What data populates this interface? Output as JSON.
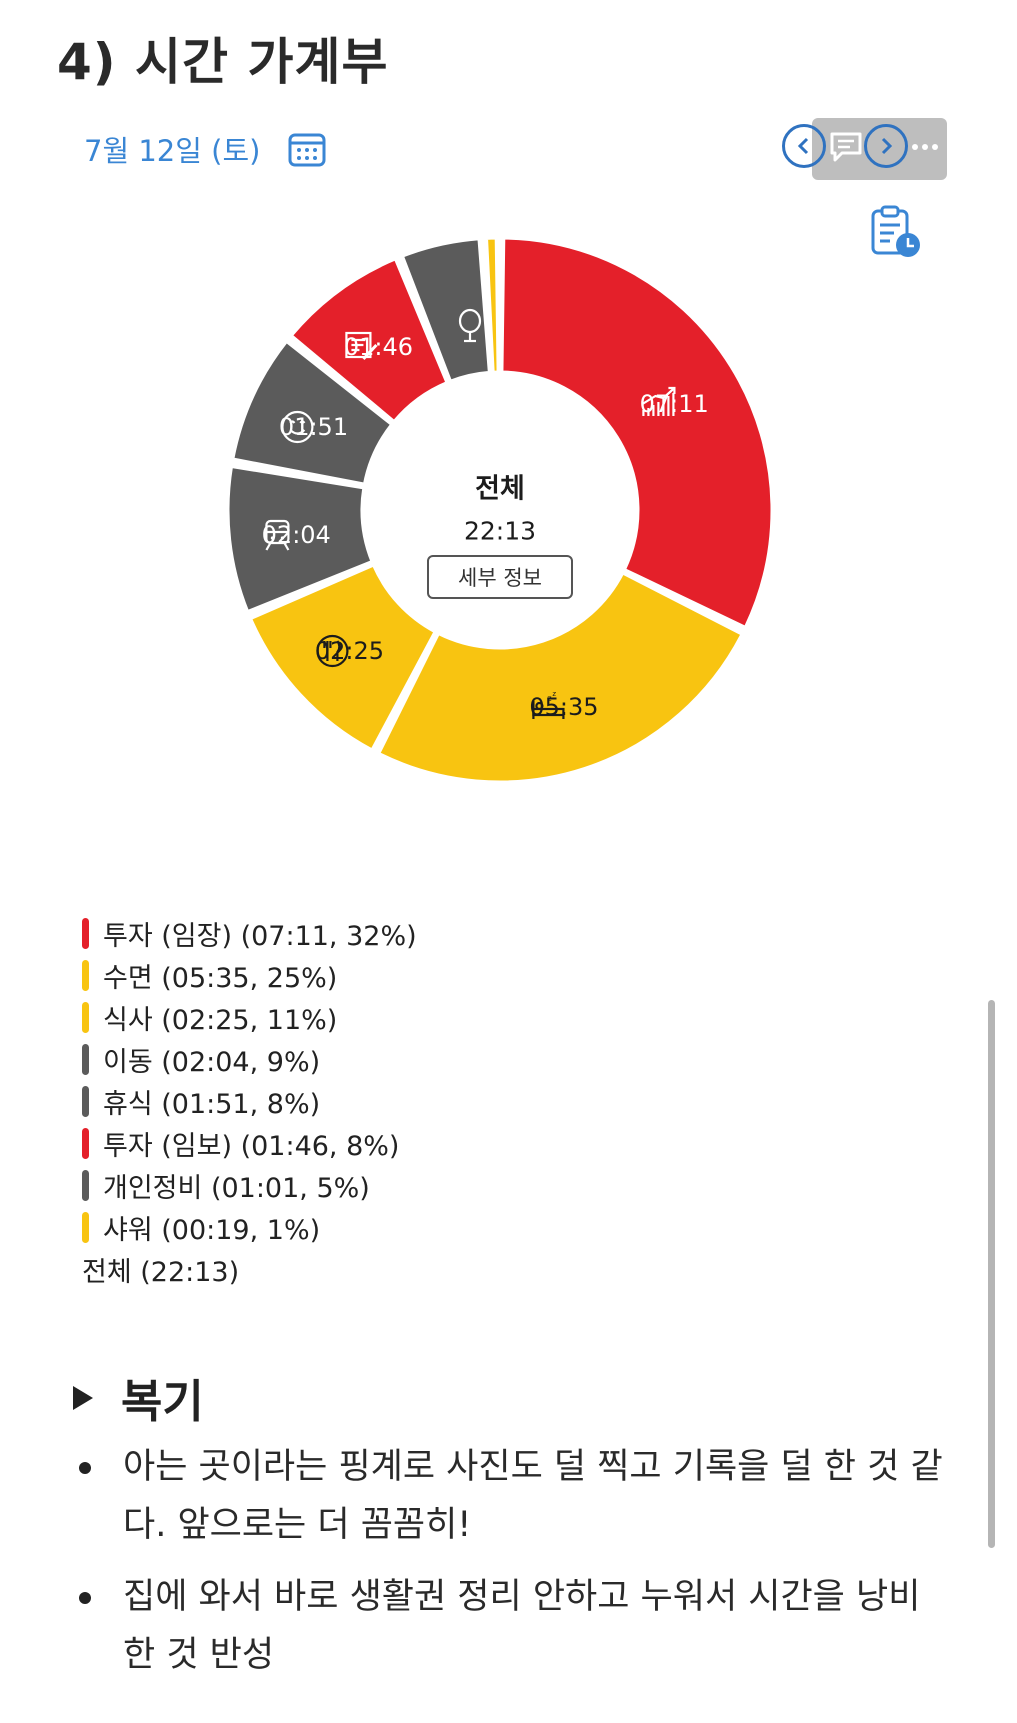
{
  "page": {
    "title": "4) 시간 가계부"
  },
  "header": {
    "date": "7월 12일 (토)"
  },
  "colors": {
    "red": "#e4202a",
    "yellow": "#f8c411",
    "gray": "#5b5b5b",
    "blue": "#2f72c0"
  },
  "chart_data": {
    "type": "pie",
    "variant": "donut",
    "center_label": "전체",
    "center_value": "22:13",
    "center_button": "세부 정보",
    "segments": [
      {
        "name": "투자 (임장)",
        "time": "07:11",
        "percent": 32,
        "color": "#e4202a",
        "icon": "growth-chart-icon",
        "label_color": "#ffffff"
      },
      {
        "name": "수면",
        "time": "05:35",
        "percent": 25,
        "color": "#f8c411",
        "icon": "sleep-bed-icon",
        "label_color": "#1c1c1c"
      },
      {
        "name": "식사",
        "time": "02:25",
        "percent": 11,
        "color": "#f8c411",
        "icon": "fork-knife-icon",
        "label_color": "#1c1c1c"
      },
      {
        "name": "이동",
        "time": "02:04",
        "percent": 9,
        "color": "#5b5b5b",
        "icon": "train-icon",
        "label_color": "#ffffff"
      },
      {
        "name": "휴식",
        "time": "01:51",
        "percent": 8,
        "color": "#5b5b5b",
        "icon": "smiley-icon",
        "label_color": "#ffffff"
      },
      {
        "name": "투자 (임보)",
        "time": "01:46",
        "percent": 8,
        "color": "#e4202a",
        "icon": "notepad-pencil-icon",
        "label_color": "#ffffff"
      },
      {
        "name": "개인정비",
        "time": "01:01",
        "percent": 5,
        "color": "#5b5b5b",
        "icon": "mirror-icon",
        "label_color": "#ffffff"
      },
      {
        "name": "샤워",
        "time": "00:19",
        "percent": 1,
        "color": "#f8c411",
        "icon": "",
        "label_color": "#ffffff"
      }
    ]
  },
  "legend": {
    "items": [
      {
        "text": "투자 (임장) (07:11, 32%)",
        "color": "#e4202a"
      },
      {
        "text": "수면 (05:35, 25%)",
        "color": "#f8c411"
      },
      {
        "text": "식사 (02:25, 11%)",
        "color": "#f8c411"
      },
      {
        "text": "이동 (02:04, 9%)",
        "color": "#5b5b5b"
      },
      {
        "text": "휴식 (01:51, 8%)",
        "color": "#5b5b5b"
      },
      {
        "text": "투자 (임보) (01:46, 8%)",
        "color": "#e4202a"
      },
      {
        "text": "개인정비 (01:01, 5%)",
        "color": "#5b5b5b"
      },
      {
        "text": "샤워 (00:19, 1%)",
        "color": "#f8c411"
      }
    ],
    "total": "전체 (22:13)"
  },
  "review": {
    "title": "복기",
    "bullets": [
      "아는 곳이라는 핑계로 사진도 덜 찍고 기록을 덜 한 것 같다. 앞으로는 더 꼼꼼히!",
      "집에 와서 바로 생활권 정리 안하고 누워서 시간을 낭비한 것 반성"
    ]
  }
}
